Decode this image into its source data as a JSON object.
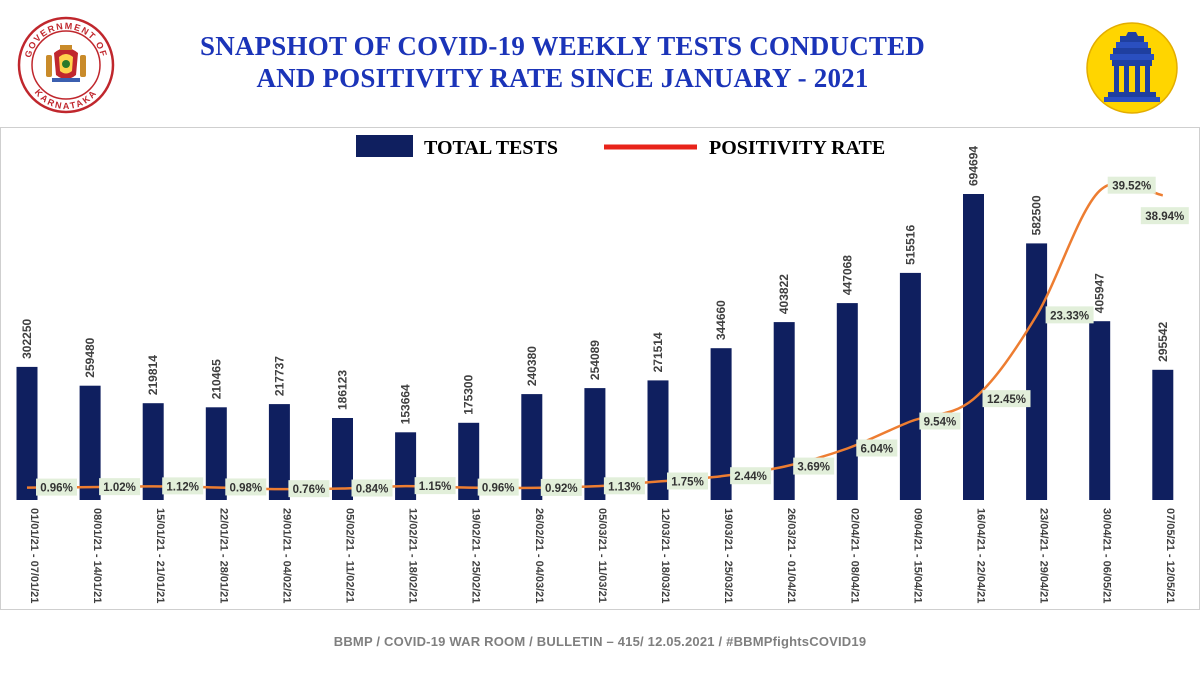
{
  "header": {
    "title_line1": "SNAPSHOT OF COVID-19 WEEKLY TESTS CONDUCTED",
    "title_line2": "AND POSITIVITY RATE SINCE JANUARY - 2021",
    "left_seal_text": "GOVERNMENT OF KARNATAKA"
  },
  "colors": {
    "title": "#1b34b8",
    "bars": "#0f1f5f",
    "line": "#ed7d31",
    "legend_line": "#e8231a",
    "label_bg": "#e2efda",
    "seal_red": "#c0272d",
    "logo_yellow": "#ffd500"
  },
  "chart_data": {
    "type": "bar",
    "title": "SNAPSHOT OF COVID-19 WEEKLY TESTS CONDUCTED AND POSITIVITY RATE SINCE JANUARY - 2021",
    "xlabel": "",
    "ylabel": "",
    "ylim": [
      0,
      750000
    ],
    "grid": false,
    "legend_position": "top-center",
    "categories": [
      "01/01/21 - 07/01/21",
      "08/01/21 - 14/01/21",
      "15/01/21 - 21/01/21",
      "22/01/21 - 28/01/21",
      "29/01/21 - 04/02/21",
      "05/02/21 - 11/02/21",
      "12/02/21 - 18/02/21",
      "19/02/21 - 25/02/21",
      "26/02/21 - 04/03/21",
      "05/03/21 - 11/03/21",
      "12/03/21 - 18/03/21",
      "19/03/21 - 25/03/21",
      "26/03/21 - 01/04/21",
      "02/04/21 - 08/04/21",
      "09/04/21 - 15/04/21",
      "16/04/21 - 22/04/21",
      "23/04/21 - 29/04/21",
      "30/04/21 - 06/05/21",
      "07/05/21 - 12/05/21"
    ],
    "series": [
      {
        "name": "TOTAL TESTS",
        "type": "bar",
        "values": [
          302250,
          259480,
          219814,
          210465,
          217737,
          186123,
          153664,
          175300,
          240380,
          254089,
          271514,
          344660,
          403822,
          447068,
          515516,
          694694,
          582500,
          405947,
          295542
        ],
        "labels": [
          "302250",
          "259480",
          "219814",
          "210465",
          "217737",
          "186123",
          "153664",
          "175300",
          "240380",
          "254089",
          "271514",
          "344660",
          "403822",
          "447068",
          "515516",
          "694694",
          "582500",
          "405947",
          "295542"
        ]
      },
      {
        "name": "POSITIVITY RATE",
        "type": "line",
        "values": [
          0.96,
          1.02,
          1.12,
          0.98,
          0.76,
          0.84,
          1.15,
          0.96,
          0.92,
          1.13,
          1.75,
          2.44,
          3.69,
          6.04,
          9.54,
          12.45,
          23.33,
          39.52,
          38.94
        ],
        "labels": [
          "0.96%",
          "1.02%",
          "1.12%",
          "0.98%",
          "0.76%",
          "0.84%",
          "1.15%",
          "0.96%",
          "0.92%",
          "1.13%",
          "1.75%",
          "2.44%",
          "3.69%",
          "6.04%",
          "9.54%",
          "12.45%",
          "23.33%",
          "39.52%",
          "38.94%"
        ],
        "ylim": [
          0,
          40
        ]
      }
    ]
  },
  "footer": {
    "text": "BBMP / COVID-19 WAR ROOM / BULLETIN – 415/ 12.05.2021 / #BBMPfightsCOVID19"
  }
}
